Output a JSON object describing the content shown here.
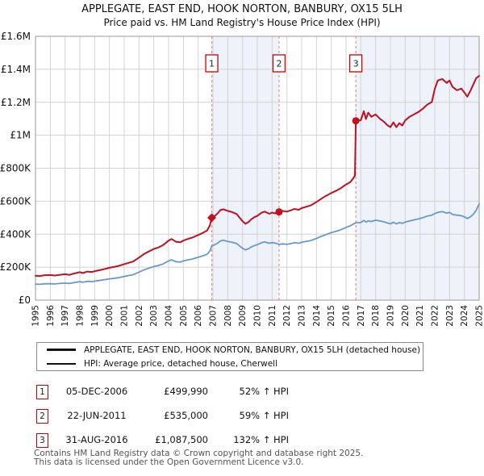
{
  "header": {
    "title": "APPLEGATE, EAST END, HOOK NORTON, BANBURY, OX15 5LH",
    "subtitle": "Price paid vs. HM Land Registry's House Price Index (HPI)"
  },
  "colors": {
    "property_line": "#c10f1f",
    "hpi_line": "#6a97cb",
    "sale_dashed_line": "#ee8888",
    "ownership_band": "#eef2fb",
    "grid": "#d2d2d2",
    "plot_border": "#9a9a9a",
    "marker_box_border": "#cc0000",
    "footer_text": "#555555"
  },
  "legend": {
    "entries": [
      {
        "label": "APPLEGATE, EAST END, HOOK NORTON, BANBURY, OX15 5LH (detached house)",
        "color": "#c10f1f"
      },
      {
        "label": "HPI: Average price, detached house, Cherwell",
        "color": "#6a97cb"
      }
    ]
  },
  "sales": [
    {
      "n": "1",
      "date": "05-DEC-2006",
      "price": "£499,990",
      "vs_hpi": "52% ↑ HPI",
      "year": 2006.92,
      "value_k": 500,
      "marker": "diamond"
    },
    {
      "n": "2",
      "date": "22-JUN-2011",
      "price": "£535,000",
      "vs_hpi": "59% ↑ HPI",
      "year": 2011.47,
      "value_k": 535,
      "marker": "circle"
    },
    {
      "n": "3",
      "date": "31-AUG-2016",
      "price": "£1,087,500",
      "vs_hpi": "132% ↑ HPI",
      "year": 2016.66,
      "value_k": 1087.5,
      "marker": "circle"
    }
  ],
  "footer": {
    "line1": "Contains HM Land Registry data © Crown copyright and database right 2025.",
    "line2": "This data is licensed under the Open Government Licence v3.0."
  },
  "chart_data": {
    "type": "line",
    "title": "Price paid vs. HM Land Registry's House Price Index (HPI)",
    "xlabel": "",
    "ylabel": "",
    "units": "GBP_thousands",
    "xlim": [
      1995,
      2025
    ],
    "ylim_k": [
      0,
      1600
    ],
    "grid": true,
    "legend_position": "below",
    "y_ticks": [
      {
        "value_k": 0,
        "label": "£0"
      },
      {
        "value_k": 200,
        "label": "£200K"
      },
      {
        "value_k": 400,
        "label": "£400K"
      },
      {
        "value_k": 600,
        "label": "£600K"
      },
      {
        "value_k": 800,
        "label": "£800K"
      },
      {
        "value_k": 1000,
        "label": "£1M"
      },
      {
        "value_k": 1200,
        "label": "£1.2M"
      },
      {
        "value_k": 1400,
        "label": "£1.4M"
      },
      {
        "value_k": 1600,
        "label": "£1.6M"
      }
    ],
    "x_tick_years": [
      1995,
      1996,
      1997,
      1998,
      1999,
      2000,
      2001,
      2002,
      2003,
      2004,
      2005,
      2006,
      2007,
      2008,
      2009,
      2010,
      2011,
      2012,
      2013,
      2014,
      2015,
      2016,
      2017,
      2018,
      2019,
      2020,
      2021,
      2022,
      2023,
      2024,
      2025
    ],
    "ownership_bands": [
      [
        2006.92,
        2011.47
      ],
      [
        2016.66,
        2025
      ]
    ],
    "series": [
      {
        "name": "APPLEGATE, EAST END, HOOK NORTON, BANBURY, OX15 5LH (detached house)",
        "color": "#c10f1f",
        "width": 2,
        "points": [
          [
            1995,
            148
          ],
          [
            1995.3,
            146
          ],
          [
            1995.6,
            151
          ],
          [
            1996,
            152
          ],
          [
            1996.3,
            149
          ],
          [
            1996.6,
            153
          ],
          [
            1997,
            157
          ],
          [
            1997.3,
            153
          ],
          [
            1997.6,
            161
          ],
          [
            1998,
            170
          ],
          [
            1998.2,
            164
          ],
          [
            1998.5,
            173
          ],
          [
            1998.8,
            171
          ],
          [
            1999,
            175
          ],
          [
            1999.3,
            181
          ],
          [
            1999.6,
            187
          ],
          [
            2000,
            196
          ],
          [
            2000.3,
            201
          ],
          [
            2000.6,
            207
          ],
          [
            2001,
            218
          ],
          [
            2001.3,
            226
          ],
          [
            2001.6,
            234
          ],
          [
            2001.8,
            246
          ],
          [
            2002,
            258
          ],
          [
            2002.3,
            277
          ],
          [
            2002.6,
            292
          ],
          [
            2003,
            310
          ],
          [
            2003.3,
            319
          ],
          [
            2003.6,
            332
          ],
          [
            2003.8,
            346
          ],
          [
            2004,
            361
          ],
          [
            2004.2,
            371
          ],
          [
            2004.5,
            354
          ],
          [
            2004.8,
            351
          ],
          [
            2005,
            361
          ],
          [
            2005.3,
            371
          ],
          [
            2005.6,
            379
          ],
          [
            2006,
            395
          ],
          [
            2006.3,
            407
          ],
          [
            2006.6,
            422
          ],
          [
            2006.8,
            455
          ],
          [
            2006.92,
            500
          ],
          [
            2007.1,
            509
          ],
          [
            2007.3,
            524
          ],
          [
            2007.5,
            546
          ],
          [
            2007.7,
            551
          ],
          [
            2008,
            541
          ],
          [
            2008.3,
            534
          ],
          [
            2008.6,
            522
          ],
          [
            2008.8,
            500
          ],
          [
            2009,
            478
          ],
          [
            2009.2,
            463
          ],
          [
            2009.4,
            473
          ],
          [
            2009.6,
            491
          ],
          [
            2009.8,
            503
          ],
          [
            2010,
            511
          ],
          [
            2010.3,
            531
          ],
          [
            2010.5,
            537
          ],
          [
            2010.8,
            524
          ],
          [
            2011,
            531
          ],
          [
            2011.2,
            526
          ],
          [
            2011.47,
            535
          ],
          [
            2011.7,
            541
          ],
          [
            2012,
            537
          ],
          [
            2012.3,
            546
          ],
          [
            2012.5,
            553
          ],
          [
            2012.8,
            548
          ],
          [
            2013,
            558
          ],
          [
            2013.3,
            566
          ],
          [
            2013.6,
            574
          ],
          [
            2014,
            595
          ],
          [
            2014.3,
            613
          ],
          [
            2014.6,
            630
          ],
          [
            2015,
            650
          ],
          [
            2015.3,
            662
          ],
          [
            2015.6,
            676
          ],
          [
            2016,
            701
          ],
          [
            2016.3,
            717
          ],
          [
            2016.5,
            741
          ],
          [
            2016.6,
            755
          ],
          [
            2016.66,
            1087.5
          ],
          [
            2017,
            1091
          ],
          [
            2017.2,
            1146
          ],
          [
            2017.35,
            1098
          ],
          [
            2017.5,
            1137
          ],
          [
            2017.7,
            1112
          ],
          [
            2018,
            1126
          ],
          [
            2018.3,
            1099
          ],
          [
            2018.6,
            1079
          ],
          [
            2018.8,
            1061
          ],
          [
            2019,
            1049
          ],
          [
            2019.2,
            1078
          ],
          [
            2019.4,
            1049
          ],
          [
            2019.6,
            1073
          ],
          [
            2019.8,
            1059
          ],
          [
            2020,
            1090
          ],
          [
            2020.3,
            1112
          ],
          [
            2020.6,
            1127
          ],
          [
            2020.9,
            1141
          ],
          [
            2021.2,
            1161
          ],
          [
            2021.5,
            1186
          ],
          [
            2021.8,
            1201
          ],
          [
            2022,
            1281
          ],
          [
            2022.2,
            1332
          ],
          [
            2022.5,
            1341
          ],
          [
            2022.8,
            1317
          ],
          [
            2023,
            1332
          ],
          [
            2023.2,
            1293
          ],
          [
            2023.5,
            1273
          ],
          [
            2023.8,
            1283
          ],
          [
            2024,
            1259
          ],
          [
            2024.2,
            1234
          ],
          [
            2024.4,
            1268
          ],
          [
            2024.6,
            1307
          ],
          [
            2024.8,
            1346
          ],
          [
            2025,
            1360
          ]
        ]
      },
      {
        "name": "HPI: Average price, detached house, Cherwell",
        "color": "#6a97cb",
        "width": 1.8,
        "points": [
          [
            1995,
            97
          ],
          [
            1995.3,
            96
          ],
          [
            1995.6,
            99
          ],
          [
            1996,
            100
          ],
          [
            1996.3,
            98
          ],
          [
            1996.6,
            101
          ],
          [
            1997,
            103
          ],
          [
            1997.3,
            101
          ],
          [
            1997.6,
            106
          ],
          [
            1998,
            112
          ],
          [
            1998.2,
            108
          ],
          [
            1998.5,
            114
          ],
          [
            1998.8,
            112
          ],
          [
            1999,
            115
          ],
          [
            1999.3,
            119
          ],
          [
            1999.6,
            123
          ],
          [
            2000,
            129
          ],
          [
            2000.3,
            132
          ],
          [
            2000.6,
            136
          ],
          [
            2001,
            143
          ],
          [
            2001.3,
            149
          ],
          [
            2001.6,
            154
          ],
          [
            2001.8,
            162
          ],
          [
            2002,
            170
          ],
          [
            2002.3,
            182
          ],
          [
            2002.6,
            192
          ],
          [
            2003,
            204
          ],
          [
            2003.3,
            210
          ],
          [
            2003.6,
            218
          ],
          [
            2003.8,
            228
          ],
          [
            2004,
            238
          ],
          [
            2004.2,
            244
          ],
          [
            2004.5,
            233
          ],
          [
            2004.8,
            231
          ],
          [
            2005,
            238
          ],
          [
            2005.3,
            244
          ],
          [
            2005.6,
            249
          ],
          [
            2006,
            260
          ],
          [
            2006.3,
            268
          ],
          [
            2006.6,
            278
          ],
          [
            2006.8,
            299
          ],
          [
            2006.92,
            329
          ],
          [
            2007.1,
            335
          ],
          [
            2007.3,
            345
          ],
          [
            2007.5,
            359
          ],
          [
            2007.7,
            363
          ],
          [
            2008,
            356
          ],
          [
            2008.3,
            351
          ],
          [
            2008.6,
            343
          ],
          [
            2008.8,
            329
          ],
          [
            2009,
            314
          ],
          [
            2009.2,
            305
          ],
          [
            2009.4,
            311
          ],
          [
            2009.6,
            323
          ],
          [
            2009.8,
            331
          ],
          [
            2010,
            336
          ],
          [
            2010.3,
            349
          ],
          [
            2010.5,
            353
          ],
          [
            2010.8,
            345
          ],
          [
            2011,
            349
          ],
          [
            2011.2,
            346
          ],
          [
            2011.47,
            338
          ],
          [
            2011.7,
            341
          ],
          [
            2012,
            338
          ],
          [
            2012.3,
            344
          ],
          [
            2012.5,
            348
          ],
          [
            2012.8,
            345
          ],
          [
            2013,
            351
          ],
          [
            2013.3,
            356
          ],
          [
            2013.6,
            361
          ],
          [
            2014,
            374
          ],
          [
            2014.3,
            386
          ],
          [
            2014.6,
            396
          ],
          [
            2015,
            409
          ],
          [
            2015.3,
            417
          ],
          [
            2015.6,
            425
          ],
          [
            2016,
            441
          ],
          [
            2016.3,
            451
          ],
          [
            2016.5,
            462
          ],
          [
            2016.66,
            469
          ],
          [
            2017,
            470
          ],
          [
            2017.2,
            483
          ],
          [
            2017.35,
            474
          ],
          [
            2017.5,
            480
          ],
          [
            2017.7,
            477
          ],
          [
            2018,
            485
          ],
          [
            2018.3,
            480
          ],
          [
            2018.6,
            474
          ],
          [
            2018.8,
            468
          ],
          [
            2019,
            463
          ],
          [
            2019.2,
            472
          ],
          [
            2019.4,
            463
          ],
          [
            2019.6,
            470
          ],
          [
            2019.8,
            466
          ],
          [
            2020,
            473
          ],
          [
            2020.3,
            480
          ],
          [
            2020.6,
            487
          ],
          [
            2020.9,
            492
          ],
          [
            2021.2,
            500
          ],
          [
            2021.5,
            510
          ],
          [
            2021.8,
            515
          ],
          [
            2022,
            525
          ],
          [
            2022.2,
            532
          ],
          [
            2022.5,
            537
          ],
          [
            2022.8,
            528
          ],
          [
            2023,
            532
          ],
          [
            2023.2,
            520
          ],
          [
            2023.5,
            515
          ],
          [
            2023.8,
            512
          ],
          [
            2024,
            505
          ],
          [
            2024.2,
            495
          ],
          [
            2024.4,
            505
          ],
          [
            2024.6,
            520
          ],
          [
            2024.8,
            545
          ],
          [
            2025,
            583
          ]
        ]
      }
    ],
    "sale_annotations": [
      {
        "label": "1",
        "year": 2006.92,
        "value_k": 500
      },
      {
        "label": "2",
        "year": 2011.47,
        "value_k": 535
      },
      {
        "label": "3",
        "year": 2016.66,
        "value_k": 1087.5
      }
    ]
  }
}
